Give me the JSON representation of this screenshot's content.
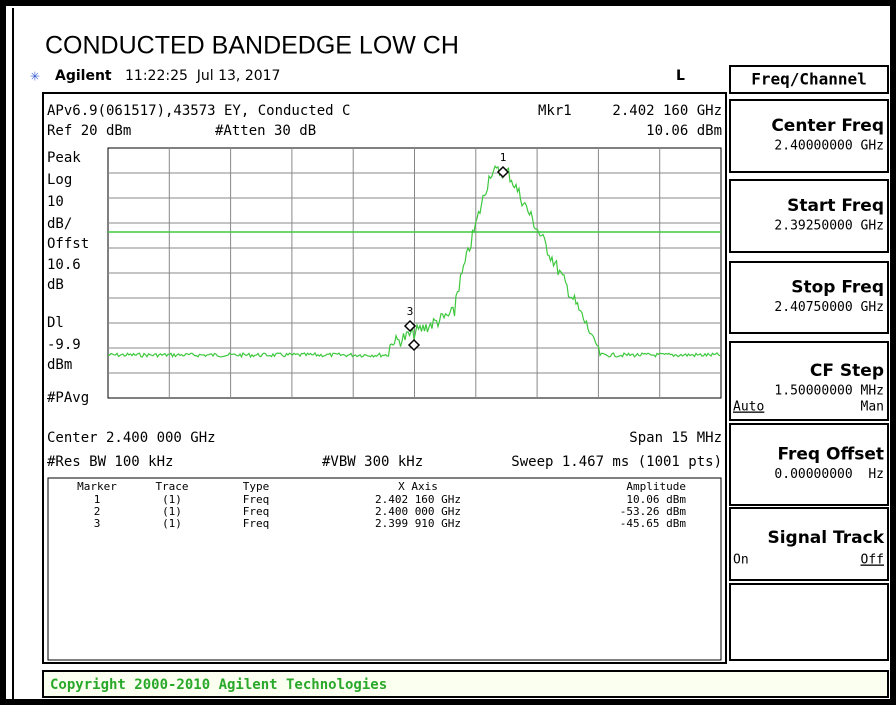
{
  "title": "CONDUCTED BANDEDGE LOW CH",
  "header": {
    "brand": "Agilent",
    "time": "11:22:25  Jul 13, 2017",
    "mode": "L"
  },
  "display": {
    "info": "APv6.9(061517),43573 EY, Conducted C",
    "marker_label": "Mkr1",
    "marker_freq": "2.402 160 GHz",
    "ref": "Ref 20 dBm",
    "atten": "#Atten 30 dB",
    "marker_amp": "10.06 dBm",
    "scale_labels": [
      "Peak",
      "Log",
      "10",
      "dB/",
      "Offst",
      "10.6",
      "dB",
      "Dl",
      "-9.9",
      "dBm",
      "#PAvg"
    ],
    "center": "Center 2.400 000 GHz",
    "span": "Span 15 MHz",
    "rbw": "#Res BW 100 kHz",
    "vbw": "#VBW 300 kHz",
    "sweep": "Sweep 1.467 ms (1001 pts)"
  },
  "trace_markers": [
    "1",
    "3"
  ],
  "table": {
    "headers": [
      "Marker",
      "Trace",
      "Type",
      "X Axis",
      "Amplitude"
    ],
    "rows": [
      [
        "1",
        "(1)",
        "Freq",
        "2.402 160 GHz",
        "10.06 dBm"
      ],
      [
        "2",
        "(1)",
        "Freq",
        "2.400 000 GHz",
        "-53.26 dBm"
      ],
      [
        "3",
        "(1)",
        "Freq",
        "2.399 910 GHz",
        "-45.65 dBm"
      ]
    ]
  },
  "menu": {
    "title": "Freq/Channel",
    "keys": [
      {
        "label": "Center Freq",
        "value": "2.40000000 GHz"
      },
      {
        "label": "Start Freq",
        "value": "2.39250000 GHz"
      },
      {
        "label": "Stop Freq",
        "value": "2.40750000 GHz"
      },
      {
        "label": "CF Step",
        "value": "1.50000000 MHz",
        "options": [
          "Auto",
          "Man"
        ]
      },
      {
        "label": "Freq Offset",
        "value": "0.00000000  Hz"
      },
      {
        "label": "Signal Track",
        "options": [
          "On",
          "Off"
        ]
      }
    ]
  },
  "footer": "Copyright 2000-2010 Agilent Technologies"
}
